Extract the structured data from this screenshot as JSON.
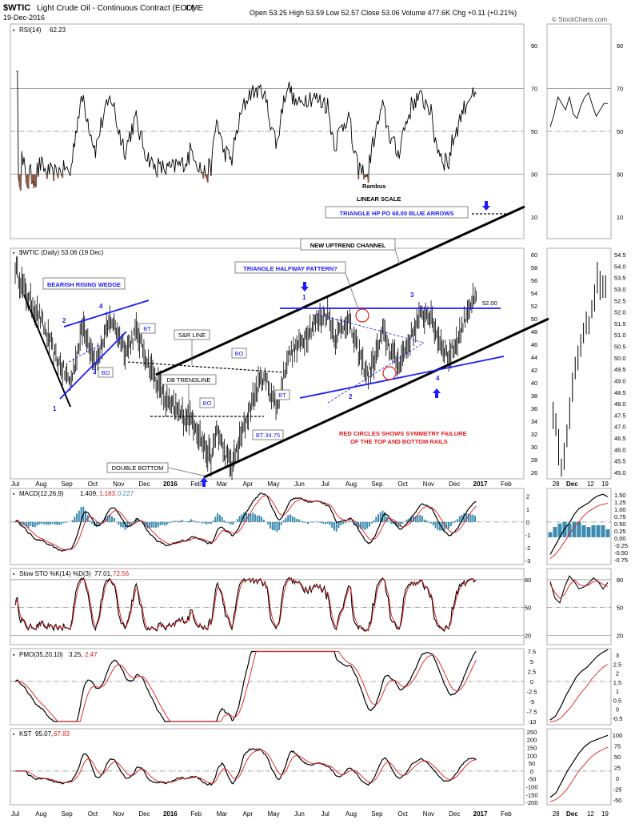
{
  "header": {
    "symbol": "$WTIC",
    "name": "Light Crude Oil - Continuous Contract (EOD)",
    "exchange": "CME",
    "date": "19-Dec-2016",
    "quote": "Open 53.25  High 53.59  Low 52.57  Close 53.06  Volume 477.6K  Chg +0.11 (+0.21%)",
    "watermark": "© StockCharts.com"
  },
  "annotations": {
    "author": "Rambus",
    "scale": "LINEAR SCALE",
    "triangle_po": "TRIANGLE HP PO 68.00 BLUE ARROWS",
    "uptrend": "NEW UPTREND CHANNEL",
    "halfway": "TRIANGLE HALFWAY PATTERN?",
    "wedge": "BEARISH RISING WEDGE",
    "sr_line": "S&R LINE",
    "db_trendline": "DB TRENDLINE",
    "double_bottom": "DOUBLE BOTTOM",
    "red_circles_1": "RED CIRCLES SHOWS SYMMETRY FAILURE",
    "red_circles_2": "OF THE TOP AND BOTTOM RAILS",
    "bt": "BT",
    "bo": "BO",
    "bt_3475": "BT 34.75",
    "level_52": "52.00",
    "labels_wedge": [
      "1",
      "2",
      "3",
      "4"
    ],
    "labels_triangle": [
      "1",
      "2",
      "3",
      "4"
    ]
  },
  "panels": {
    "rsi": {
      "label": "RSI(14)",
      "value": "62.23"
    },
    "price": {
      "label": "$WTIC (Daily) 53.06 (19 Dec)"
    },
    "macd": {
      "label": "MACD(12,26,9)",
      "v1": "1.409,",
      "v2": "1.183,",
      "v3": "0.227"
    },
    "sto": {
      "label": "Slow STO %K(14) %D(3)",
      "v1": "77.01,",
      "v2": "72.56"
    },
    "pmo": {
      "label": "PMO(35,20,10)",
      "v1": "3.25,",
      "v2": "2.47"
    },
    "kst": {
      "label": "KST",
      "v1": "95.07,",
      "v2": "67.83"
    }
  },
  "x_axis_labels": [
    "Jul",
    "Aug",
    "Sep",
    "Oct",
    "Nov",
    "Dec",
    "2016",
    "Feb",
    "Mar",
    "Apr",
    "May",
    "Jun",
    "Jul",
    "Aug",
    "Sep",
    "Oct",
    "Nov",
    "Dec",
    "2017",
    "Feb"
  ],
  "x_axis_labels_right": [
    "28",
    "Dec",
    "12",
    "19"
  ],
  "colors": {
    "line": "#000000",
    "signal": "#e41a1c",
    "blue": "#1a1aff",
    "histogram": "#3b8bb0",
    "rsi_fill": "#8b5a4a",
    "grid": "#999999"
  },
  "chart_data": [
    {
      "type": "line",
      "title": "RSI(14) 62.23",
      "ylim": [
        0,
        100
      ],
      "yticks": [
        10,
        30,
        50,
        70,
        90
      ],
      "x": [
        "Jul",
        "Sep",
        "Nov",
        "2016",
        "Mar",
        "May",
        "Jul",
        "Sep",
        "Nov",
        "Dec"
      ],
      "series": [
        {
          "name": "RSI(14)",
          "values": [
            55,
            25,
            58,
            40,
            35,
            62,
            70,
            45,
            32,
            62
          ]
        }
      ]
    },
    {
      "type": "line",
      "title": "$WTIC (Daily) 53.06 (19 Dec)",
      "ylim": [
        26,
        60
      ],
      "yticks": [
        26,
        28,
        30,
        32,
        34,
        36,
        38,
        40,
        42,
        44,
        46,
        48,
        50,
        52,
        54,
        56,
        58,
        60
      ],
      "yticks_right": [
        45.0,
        45.5,
        46.0,
        46.5,
        47.0,
        47.5,
        48.0,
        48.5,
        49.0,
        49.5,
        50.0,
        50.5,
        51.0,
        51.5,
        52.0,
        52.5,
        53.0,
        53.5,
        54.0,
        54.5
      ],
      "x": [
        "Jul",
        "Aug",
        "Sep",
        "Oct",
        "Nov",
        "Dec",
        "2016",
        "Feb",
        "Mar",
        "Apr",
        "May",
        "Jun",
        "Jul",
        "Aug",
        "Sep",
        "Oct",
        "Nov",
        "Dec"
      ],
      "series": [
        {
          "name": "$WTIC",
          "values": [
            58,
            46,
            40,
            48,
            45,
            37,
            34,
            27,
            38,
            44,
            48,
            51,
            46,
            40,
            46,
            51,
            44,
            53
          ]
        }
      ]
    },
    {
      "type": "line",
      "title": "MACD(12,26,9) 1.409, 1.183, 0.227",
      "ylim": [
        -3,
        2.5
      ],
      "yticks": [
        -3,
        -2,
        -1,
        0,
        1,
        2
      ],
      "series": [
        {
          "name": "MACD",
          "values": [
            0,
            -2.5,
            0.3,
            -0.2,
            -1.5,
            -2.2,
            2.0,
            1.5,
            -0.5,
            0.8,
            -1.5,
            1.4
          ]
        },
        {
          "name": "Signal",
          "values": [
            0,
            -2.0,
            0.0,
            -0.1,
            -1.2,
            -2.0,
            1.6,
            1.4,
            -0.3,
            0.6,
            -1.0,
            1.2
          ]
        }
      ]
    },
    {
      "type": "line",
      "title": "Slow STO %K(14) %D(3) 77.01, 72.56",
      "ylim": [
        10,
        90
      ],
      "yticks": [
        20,
        50,
        80
      ]
    },
    {
      "type": "line",
      "title": "PMO(35,20,10) 3.25, 2.47",
      "ylim": [
        -10,
        7.5
      ],
      "yticks": [
        -10,
        -7.5,
        -5,
        -2.5,
        0,
        2.5,
        5,
        7.5
      ],
      "yticks_right": [
        -0.5,
        0,
        0.5,
        1,
        1.5,
        2,
        2.5,
        3
      ]
    },
    {
      "type": "line",
      "title": "KST 95.07, 67.83",
      "ylim": [
        -200,
        250
      ],
      "yticks": [
        -200,
        -150,
        -100,
        -50,
        0,
        50,
        100,
        150,
        200,
        250
      ],
      "yticks_right": [
        -50,
        -25,
        0,
        25,
        50,
        75,
        100
      ]
    }
  ]
}
